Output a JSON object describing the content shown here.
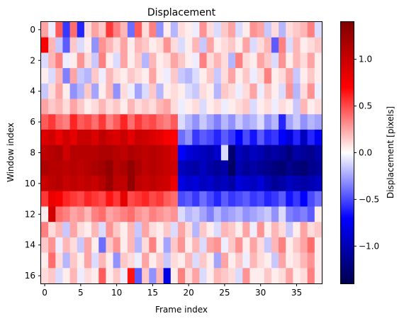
{
  "chart_data": {
    "type": "heatmap",
    "title": "Displacement",
    "xlabel": "Frame index",
    "ylabel": "Window index",
    "colorbar_label": "Displacement [pixels]",
    "colormap": "seismic",
    "grid": false,
    "n_cols": 39,
    "n_rows": 17,
    "xlim": [
      -0.5,
      38.5
    ],
    "ylim": [
      -0.5,
      16.5
    ],
    "clim": [
      -1.4,
      1.4
    ],
    "x_ticks": [
      0,
      5,
      10,
      15,
      20,
      25,
      30,
      35
    ],
    "x_tick_labels": [
      "0",
      "5",
      "10",
      "15",
      "20",
      "25",
      "30",
      "35"
    ],
    "y_ticks": [
      0,
      2,
      4,
      6,
      8,
      10,
      12,
      14,
      16
    ],
    "y_tick_labels": [
      "0",
      "2",
      "4",
      "6",
      "8",
      "10",
      "12",
      "14",
      "16"
    ],
    "colorbar_ticks": [
      1.0,
      0.5,
      0.0,
      -0.5,
      -1.0
    ],
    "colorbar_tick_labels": [
      "1.0",
      "0.5",
      "0.0",
      "−0.5",
      "−1.0"
    ],
    "values": [
      [
        0.25,
        -0.05,
        0.45,
        -0.55,
        0.4,
        -0.6,
        0.1,
        0.25,
        0.15,
        0.55,
        0.35,
        0.2,
        -0.4,
        0.45,
        0.1,
        0.35,
        -0.3,
        0.05,
        -0.2,
        0.1,
        0.05,
        -0.05,
        0.3,
        0.1,
        -0.1,
        0.15,
        0.25,
        -0.1,
        0.05,
        0.3,
        0.25,
        -0.15,
        0.1,
        -0.2,
        0.1,
        0.15,
        0.2,
        0.35,
        -0.1
      ],
      [
        0.75,
        0.2,
        -0.15,
        -0.45,
        0.15,
        -0.1,
        0.05,
        -0.3,
        0.3,
        0.2,
        0.1,
        0.25,
        0.05,
        0.2,
        0.15,
        0.05,
        0.1,
        0.3,
        0.1,
        -0.1,
        0.05,
        0.2,
        -0.15,
        0.25,
        0.05,
        0.1,
        0.15,
        0.05,
        0.25,
        -0.1,
        0.1,
        0.2,
        -0.45,
        0.35,
        -0.1,
        0.2,
        0.05,
        0.1,
        0.15
      ],
      [
        -0.1,
        0.2,
        0.35,
        -0.05,
        0.05,
        0.3,
        0.1,
        -0.15,
        0.35,
        0.05,
        -0.1,
        0.25,
        0.05,
        0.15,
        -0.2,
        0.2,
        0.05,
        0.1,
        0.25,
        0.15,
        0.05,
        -0.05,
        0.35,
        0.1,
        0.2,
        0.1,
        -0.2,
        0.35,
        0.1,
        0.05,
        0.25,
        0.15,
        -0.1,
        0.3,
        0.05,
        0.2,
        0.1,
        0.25,
        0.05
      ],
      [
        0.05,
        -0.1,
        0.2,
        -0.35,
        0.25,
        -0.15,
        -0.2,
        0.15,
        -0.05,
        0.2,
        0.1,
        0.05,
        0.15,
        0.1,
        0.05,
        0.25,
        0.05,
        -0.05,
        0.15,
        -0.15,
        -0.2,
        -0.1,
        0.05,
        0.15,
        -0.15,
        0.1,
        0.25,
        0.05,
        0.15,
        -0.05,
        0.1,
        0.35,
        0.05,
        0.1,
        0.25,
        -0.15,
        0.05,
        0.15,
        0.05
      ],
      [
        -0.15,
        0.1,
        0.25,
        0.05,
        -0.3,
        -0.2,
        0.15,
        -0.25,
        0.05,
        0.2,
        -0.3,
        0.1,
        -0.05,
        -0.25,
        -0.1,
        0.15,
        -0.2,
        0.05,
        0.1,
        0.05,
        -0.1,
        -0.15,
        0.1,
        0.05,
        -0.2,
        0.15,
        0.1,
        -0.05,
        0.1,
        0.25,
        -0.05,
        0.15,
        0.05,
        -0.1,
        0.3,
        -0.2,
        0.1,
        0.3,
        -0.05
      ],
      [
        0.25,
        0.15,
        0.2,
        0.1,
        0.25,
        0.15,
        0.05,
        0.1,
        0.2,
        0.1,
        0.15,
        0.05,
        0.2,
        0.1,
        0.15,
        0.1,
        0.2,
        0.25,
        0.1,
        -0.05,
        0.05,
        0.1,
        -0.1,
        0.05,
        0.1,
        -0.05,
        0.05,
        0.1,
        0.15,
        -0.1,
        0.05,
        0.1,
        -0.05,
        0.1,
        0.05,
        -0.15,
        0.2,
        0.05,
        0.1
      ],
      [
        0.45,
        0.55,
        0.4,
        0.35,
        0.6,
        0.45,
        0.5,
        0.4,
        0.55,
        0.35,
        0.45,
        0.6,
        0.4,
        0.55,
        0.45,
        0.5,
        0.4,
        0.35,
        0.45,
        -0.1,
        -0.2,
        -0.3,
        -0.15,
        -0.25,
        -0.35,
        -0.2,
        -0.3,
        -0.15,
        -0.25,
        -0.2,
        -0.1,
        -0.3,
        -0.2,
        -0.6,
        -0.25,
        -0.15,
        -0.3,
        -0.2,
        -0.25
      ],
      [
        0.9,
        0.95,
        0.8,
        0.95,
        0.85,
        1.0,
        1.0,
        0.9,
        1.05,
        0.95,
        0.9,
        1.0,
        0.85,
        1.0,
        0.95,
        0.9,
        0.85,
        0.75,
        0.7,
        -0.4,
        -0.3,
        -0.55,
        -0.45,
        -0.5,
        -0.6,
        -0.45,
        -0.55,
        -0.7,
        -0.5,
        -0.65,
        -0.45,
        -0.6,
        -0.55,
        -0.7,
        -0.85,
        -0.6,
        -0.95,
        -0.6,
        -0.75
      ],
      [
        1.05,
        1.1,
        1.15,
        0.95,
        1.1,
        1.1,
        1.1,
        1.1,
        1.15,
        1.15,
        1.1,
        1.05,
        1.15,
        1.1,
        1.05,
        1.1,
        1.05,
        1.0,
        0.9,
        -0.7,
        -0.85,
        -0.9,
        -0.95,
        -1.0,
        -0.9,
        -0.1,
        -1.25,
        -0.95,
        -1.05,
        -0.95,
        -1.0,
        -1.1,
        -1.05,
        -1.1,
        -1.2,
        -1.05,
        -1.1,
        -1.15,
        -1.05
      ],
      [
        1.15,
        1.1,
        1.1,
        1.05,
        1.1,
        1.05,
        1.1,
        1.15,
        1.2,
        1.3,
        1.1,
        1.15,
        1.3,
        1.15,
        1.05,
        1.1,
        1.05,
        1.0,
        0.95,
        -0.95,
        -1.0,
        -1.05,
        -0.95,
        -1.05,
        -1.1,
        -1.05,
        -1.3,
        -1.0,
        -1.1,
        -1.05,
        -1.1,
        -1.15,
        -1.2,
        -1.25,
        -1.15,
        -1.2,
        -1.25,
        -1.15,
        -1.1
      ],
      [
        1.0,
        1.05,
        1.1,
        1.0,
        1.05,
        1.0,
        1.05,
        1.0,
        1.1,
        1.25,
        1.05,
        1.05,
        1.3,
        1.05,
        1.0,
        1.05,
        1.0,
        0.95,
        0.8,
        -0.8,
        -0.9,
        -0.85,
        -0.95,
        -0.9,
        -1.0,
        -0.95,
        -1.05,
        -0.85,
        -0.9,
        -0.95,
        -0.85,
        -1.0,
        -1.1,
        -1.05,
        -0.95,
        -1.0,
        -1.05,
        -1.0,
        -0.95
      ],
      [
        0.55,
        0.8,
        0.75,
        0.6,
        0.55,
        0.5,
        0.6,
        0.55,
        0.5,
        0.65,
        0.55,
        0.85,
        0.5,
        0.55,
        0.6,
        0.5,
        0.55,
        0.45,
        0.4,
        -0.5,
        -0.45,
        -0.55,
        -0.4,
        -0.5,
        -0.6,
        -0.45,
        -0.55,
        -0.5,
        -0.45,
        -0.55,
        -0.5,
        -0.6,
        -0.55,
        -0.45,
        -0.65,
        -0.55,
        -0.7,
        -0.5,
        -0.4
      ],
      [
        0.05,
        0.95,
        0.4,
        0.35,
        0.25,
        0.3,
        0.2,
        0.35,
        0.4,
        0.25,
        0.3,
        0.35,
        0.4,
        0.3,
        0.25,
        0.35,
        0.3,
        0.25,
        0.3,
        -0.1,
        -0.2,
        -0.15,
        -0.25,
        -0.35,
        -0.2,
        -0.3,
        -0.25,
        -0.2,
        -0.3,
        -0.25,
        -0.2,
        -0.15,
        -0.3,
        -0.1,
        -0.35,
        -0.4,
        -0.35,
        -0.45,
        0.05
      ],
      [
        0.35,
        0.1,
        0.2,
        -0.15,
        0.25,
        0.1,
        0.05,
        0.2,
        -0.1,
        0.3,
        0.15,
        0.05,
        0.2,
        -0.15,
        0.25,
        0.1,
        0.05,
        0.15,
        -0.1,
        0.25,
        0.1,
        -0.2,
        0.15,
        0.05,
        -0.1,
        0.2,
        0.15,
        0.05,
        0.25,
        -0.05,
        0.3,
        0.05,
        0.2,
        0.1,
        -0.15,
        0.05,
        0.25,
        0.1,
        0.15
      ],
      [
        0.15,
        0.3,
        -0.05,
        0.2,
        0.1,
        -0.15,
        0.25,
        0.05,
        -0.4,
        0.15,
        0.3,
        0.05,
        0.2,
        -0.2,
        0.1,
        0.35,
        0.05,
        -0.25,
        0.15,
        0.3,
        0.05,
        0.2,
        -0.1,
        0.25,
        0.3,
        -0.05,
        0.15,
        0.3,
        0.05,
        0.25,
        0.1,
        -0.15,
        0.2,
        0.35,
        0.05,
        0.15,
        0.25,
        0.4,
        0.05
      ],
      [
        0.05,
        0.4,
        0.1,
        -0.2,
        0.15,
        0.05,
        0.25,
        -0.1,
        0.2,
        0.05,
        -0.3,
        0.15,
        0.1,
        -0.05,
        0.25,
        0.05,
        0.15,
        -0.15,
        0.1,
        0.05,
        0.2,
        -0.1,
        0.15,
        0.05,
        -0.25,
        0.25,
        0.05,
        0.15,
        -0.05,
        0.2,
        0.1,
        0.05,
        -0.15,
        0.25,
        0.05,
        0.1,
        0.2,
        0.3,
        0.05
      ],
      [
        0.1,
        0.15,
        -0.1,
        0.05,
        0.2,
        -0.05,
        0.1,
        0.05,
        0.45,
        0.05,
        0.15,
        -0.05,
        0.65,
        -0.45,
        0.15,
        -0.3,
        0.2,
        -0.8,
        0.05,
        0.35,
        0.1,
        0.25,
        -0.1,
        0.05,
        0.2,
        0.15,
        0.1,
        -0.1,
        0.3,
        0.05,
        0.05,
        0.15,
        0.05,
        0.1,
        0.25,
        0.05,
        0.1,
        0.35,
        0.05
      ]
    ]
  }
}
